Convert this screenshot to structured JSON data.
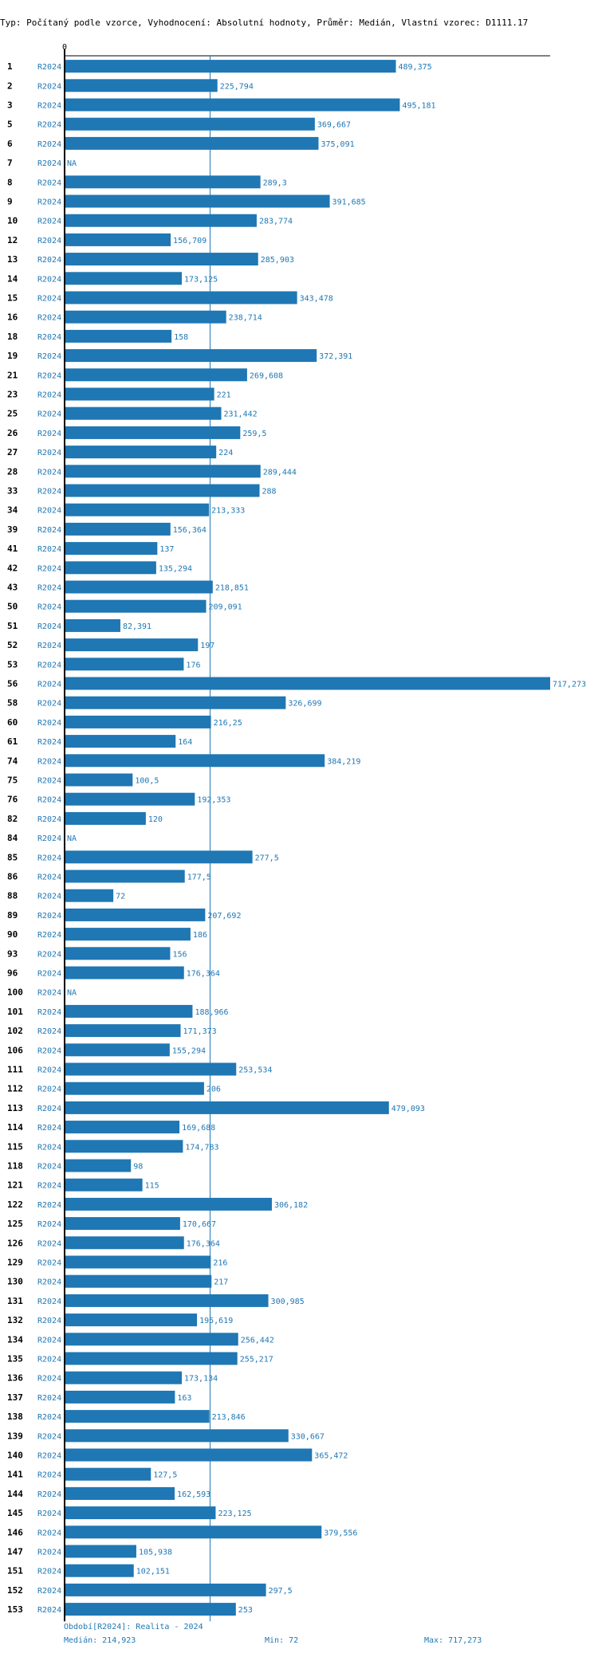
{
  "chart_data": {
    "type": "bar",
    "orientation": "horizontal",
    "title": "Typ: Počítaný podle vzorce, Vyhodnocení: Absolutní hodnoty, Průměr: Medián, Vlastní vzorec: D1111.17",
    "x_axis_zero_label": "0",
    "xlim": [
      0,
      717.273
    ],
    "median": 214.923,
    "series_label": "R2024",
    "na_label": "NA",
    "categories": [
      "1",
      "2",
      "3",
      "5",
      "6",
      "7",
      "8",
      "9",
      "10",
      "12",
      "13",
      "14",
      "15",
      "16",
      "18",
      "19",
      "21",
      "23",
      "25",
      "26",
      "27",
      "28",
      "33",
      "34",
      "39",
      "41",
      "42",
      "43",
      "50",
      "51",
      "52",
      "53",
      "56",
      "58",
      "60",
      "61",
      "74",
      "75",
      "76",
      "82",
      "84",
      "85",
      "86",
      "88",
      "89",
      "90",
      "93",
      "96",
      "100",
      "101",
      "102",
      "106",
      "111",
      "112",
      "113",
      "114",
      "115",
      "118",
      "121",
      "122",
      "125",
      "126",
      "129",
      "130",
      "131",
      "132",
      "134",
      "135",
      "136",
      "137",
      "138",
      "139",
      "140",
      "141",
      "144",
      "145",
      "146",
      "147",
      "151",
      "152",
      "153"
    ],
    "values": [
      489.375,
      225.794,
      495.181,
      369.667,
      375.091,
      null,
      289.3,
      391.685,
      283.774,
      156.709,
      285.903,
      173.125,
      343.478,
      238.714,
      158,
      372.391,
      269.608,
      221,
      231.442,
      259.5,
      224,
      289.444,
      288,
      213.333,
      156.364,
      137,
      135.294,
      218.851,
      209.091,
      82.391,
      197,
      176,
      717.273,
      326.699,
      216.25,
      164,
      384.219,
      100.5,
      192.353,
      120,
      null,
      277.5,
      177.5,
      72,
      207.692,
      186,
      156,
      176.364,
      null,
      188.966,
      171.373,
      155.294,
      253.534,
      206,
      479.093,
      169.688,
      174.783,
      98,
      115,
      306.182,
      170.667,
      176.364,
      216,
      217,
      300.985,
      195.619,
      256.442,
      255.217,
      173.134,
      163,
      213.846,
      330.667,
      365.472,
      127.5,
      162.593,
      223.125,
      379.556,
      105.938,
      102.151,
      297.5,
      253
    ],
    "value_labels": [
      "489,375",
      "225,794",
      "495,181",
      "369,667",
      "375,091",
      "NA",
      "289,3",
      "391,685",
      "283,774",
      "156,709",
      "285,903",
      "173,125",
      "343,478",
      "238,714",
      "158",
      "372,391",
      "269,608",
      "221",
      "231,442",
      "259,5",
      "224",
      "289,444",
      "288",
      "213,333",
      "156,364",
      "137",
      "135,294",
      "218,851",
      "209,091",
      "82,391",
      "197",
      "176",
      "717,273",
      "326,699",
      "216,25",
      "164",
      "384,219",
      "100,5",
      "192,353",
      "120",
      "NA",
      "277,5",
      "177,5",
      "72",
      "207,692",
      "186",
      "156",
      "176,364",
      "NA",
      "188,966",
      "171,373",
      "155,294",
      "253,534",
      "206",
      "479,093",
      "169,688",
      "174,783",
      "98",
      "115",
      "306,182",
      "170,667",
      "176,364",
      "216",
      "217",
      "300,985",
      "195,619",
      "256,442",
      "255,217",
      "173,134",
      "163",
      "213,846",
      "330,667",
      "365,472",
      "127,5",
      "162,593",
      "223,125",
      "379,556",
      "105,938",
      "102,151",
      "297,5",
      "253"
    ],
    "colors": {
      "bar": "#1f77b4",
      "median_line": "#1f77b4",
      "axis": "#000000"
    }
  },
  "footer": {
    "period": "Období[R2024]: Realita - 2024",
    "median": "Medián: 214,923",
    "min": "Min: 72",
    "max": "Max: 717,273"
  }
}
